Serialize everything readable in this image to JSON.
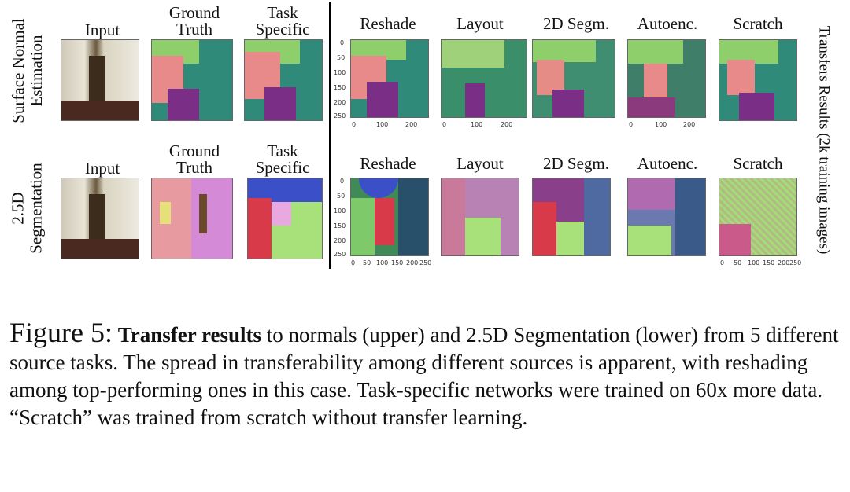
{
  "rows": [
    {
      "label_lines": [
        "Surface Normal",
        "Estimation"
      ]
    },
    {
      "label_lines": [
        "2.5D",
        "Segmentation"
      ]
    }
  ],
  "left_columns": {
    "input": "Input",
    "ground_truth": [
      "Ground",
      "Truth"
    ],
    "task_specific": [
      "Task",
      "Specific"
    ]
  },
  "transfer_columns": [
    "Reshade",
    "Layout",
    "2D Segm.",
    "Autoenc.",
    "Scratch"
  ],
  "side_label": "Transfers Results (2k training images)",
  "axis_ticks": {
    "y": [
      "0",
      "50",
      "100",
      "150",
      "200",
      "250"
    ],
    "x_top": [
      "0",
      "100",
      "200"
    ],
    "x_bottom": [
      "0",
      "50",
      "100",
      "150",
      "200",
      "250"
    ]
  },
  "caption": {
    "figure_label": "Figure 5:",
    "bold": "Transfer results",
    "text": " to normals (upper) and 2.5D Segmentation (lower) from 5 different source tasks. The spread in transferability among different sources is apparent, with reshading among top-performing ones in this case. Task-specific networks were trained on 60x more data. “Scratch” was trained from scratch without transfer learning."
  },
  "colors": {
    "normal_green": "#8fcf6b",
    "normal_teal": "#2f8a7a",
    "normal_pink": "#e88a8a",
    "normal_purple": "#7a2e86",
    "seg_pink": "#d48ad6",
    "seg_blue": "#3a4fc8",
    "seg_red": "#d83a4a",
    "seg_lime": "#a8e07a"
  }
}
